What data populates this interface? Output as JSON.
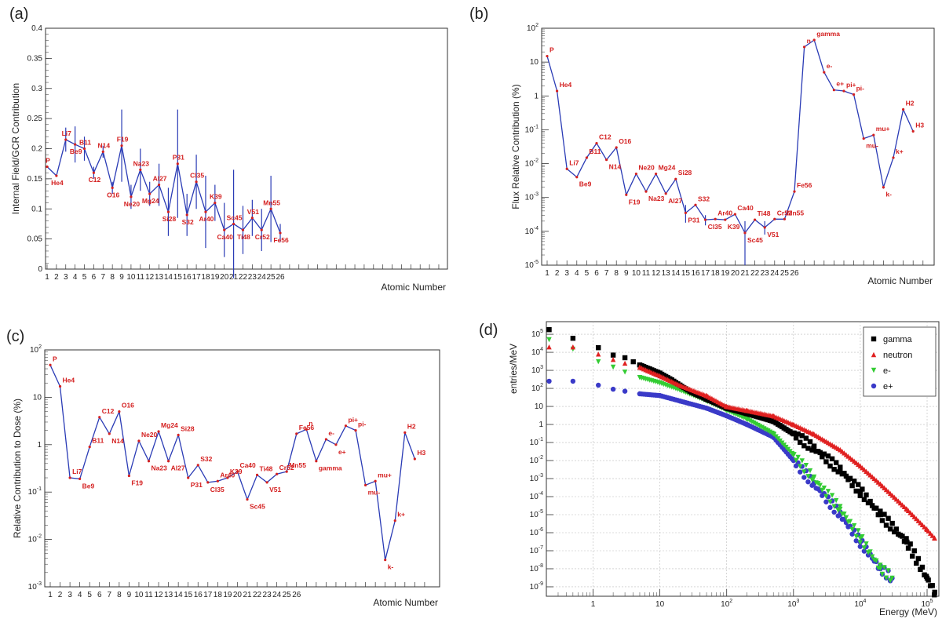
{
  "chart_data": [
    {
      "panel": "(a)",
      "type": "line",
      "ylabel": "Internal Field/GCR Contribution",
      "xlabel": "Atomic Number",
      "ylim": [
        0,
        0.4
      ],
      "yscale": "linear",
      "yticks": [
        0,
        0.05,
        0.1,
        0.15,
        0.2,
        0.25,
        0.3,
        0.35,
        0.4
      ],
      "ytick_labels": [
        "0",
        "0.05",
        "0.1",
        "0.15",
        "0.2",
        "0.25",
        "0.3",
        "0.35",
        "0.4"
      ],
      "x_tick_labels": [
        "1",
        "2",
        "3",
        "4",
        "5",
        "6",
        "7",
        "8",
        "9",
        "10",
        "11",
        "12",
        "13",
        "14",
        "15",
        "16",
        "17",
        "18",
        "19",
        "20",
        "21",
        "22",
        "23",
        "24",
        "25",
        "26"
      ],
      "points": [
        {
          "x": 1,
          "y": 0.17,
          "err": 0,
          "label": "P"
        },
        {
          "x": 2,
          "y": 0.155,
          "err": 0,
          "label": "He4"
        },
        {
          "x": 3,
          "y": 0.215,
          "err": 0.02,
          "label": "Li7"
        },
        {
          "x": 4,
          "y": 0.207,
          "err": 0.03,
          "label": "Be9"
        },
        {
          "x": 5,
          "y": 0.2,
          "err": 0.02,
          "label": "B11"
        },
        {
          "x": 6,
          "y": 0.16,
          "err": 0.01,
          "label": "C12"
        },
        {
          "x": 7,
          "y": 0.195,
          "err": 0.01,
          "label": "N14"
        },
        {
          "x": 8,
          "y": 0.135,
          "err": 0.01,
          "label": "O16"
        },
        {
          "x": 9,
          "y": 0.205,
          "err": 0.06,
          "label": "F19"
        },
        {
          "x": 10,
          "y": 0.12,
          "err": 0.02,
          "label": "Ne20"
        },
        {
          "x": 11,
          "y": 0.165,
          "err": 0.035,
          "label": "Na23"
        },
        {
          "x": 12,
          "y": 0.125,
          "err": 0.02,
          "label": "Mg24"
        },
        {
          "x": 13,
          "y": 0.14,
          "err": 0.035,
          "label": "Al27"
        },
        {
          "x": 14,
          "y": 0.095,
          "err": 0.04,
          "label": "Si28"
        },
        {
          "x": 15,
          "y": 0.175,
          "err": 0.09,
          "label": "P31"
        },
        {
          "x": 16,
          "y": 0.09,
          "err": 0.035,
          "label": "S32"
        },
        {
          "x": 17,
          "y": 0.145,
          "err": 0.045,
          "label": "Cl35"
        },
        {
          "x": 18,
          "y": 0.095,
          "err": 0.06,
          "label": "Ar40"
        },
        {
          "x": 19,
          "y": 0.11,
          "err": 0.03,
          "label": "K39"
        },
        {
          "x": 20,
          "y": 0.065,
          "err": 0.045,
          "label": "Ca40"
        },
        {
          "x": 21,
          "y": 0.075,
          "err": 0.09,
          "label": "Sc45"
        },
        {
          "x": 22,
          "y": 0.065,
          "err": 0.04,
          "label": "Ti48"
        },
        {
          "x": 23,
          "y": 0.085,
          "err": 0.03,
          "label": "V51"
        },
        {
          "x": 24,
          "y": 0.065,
          "err": 0.035,
          "label": "Cr52"
        },
        {
          "x": 25,
          "y": 0.1,
          "err": 0.055,
          "label": "Mn55"
        },
        {
          "x": 26,
          "y": 0.06,
          "err": 0.015,
          "label": "Fe56"
        }
      ]
    },
    {
      "panel": "(b)",
      "type": "line",
      "ylabel": "Flux Relative Contribution (%)",
      "xlabel": "Atomic Number",
      "yscale": "log",
      "ylim": [
        1e-05,
        100
      ],
      "ytick_labels": [
        "10-5",
        "10-4",
        "10-3",
        "10-2",
        "10-1",
        "1",
        "10",
        "102"
      ],
      "x_tick_labels": [
        "1",
        "2",
        "3",
        "4",
        "5",
        "6",
        "7",
        "8",
        "9",
        "10",
        "11",
        "12",
        "13",
        "14",
        "15",
        "16",
        "17",
        "18",
        "19",
        "20",
        "21",
        "22",
        "23",
        "24",
        "25",
        "26"
      ],
      "points": [
        {
          "x": 1,
          "y": 15,
          "label": "P"
        },
        {
          "x": 2,
          "y": 1.4,
          "label": "He4"
        },
        {
          "x": 3,
          "y": 0.007,
          "label": "Li7"
        },
        {
          "x": 4,
          "y": 0.004,
          "label": "Be9"
        },
        {
          "x": 5,
          "y": 0.015,
          "label": "B11"
        },
        {
          "x": 6,
          "y": 0.04,
          "label": "C12"
        },
        {
          "x": 7,
          "y": 0.013,
          "label": "N14"
        },
        {
          "x": 8,
          "y": 0.03,
          "label": "O16"
        },
        {
          "x": 9,
          "y": 0.0012,
          "label": "F19"
        },
        {
          "x": 10,
          "y": 0.005,
          "label": "Ne20"
        },
        {
          "x": 11,
          "y": 0.0015,
          "label": "Na23"
        },
        {
          "x": 12,
          "y": 0.005,
          "label": "Mg24"
        },
        {
          "x": 13,
          "y": 0.0013,
          "label": "Al27"
        },
        {
          "x": 14,
          "y": 0.0035,
          "label": "Si28"
        },
        {
          "x": 15,
          "y": 0.00035,
          "label": "P31"
        },
        {
          "x": 16,
          "y": 0.0006,
          "label": "S32"
        },
        {
          "x": 17,
          "y": 0.00022,
          "label": "Cl35"
        },
        {
          "x": 18,
          "y": 0.00023,
          "label": "Ar40"
        },
        {
          "x": 19,
          "y": 0.00022,
          "label": "K39"
        },
        {
          "x": 20,
          "y": 0.00032,
          "label": "Ca40"
        },
        {
          "x": 21,
          "y": 9e-05,
          "label": "Sc45"
        },
        {
          "x": 22,
          "y": 0.00022,
          "label": "Ti48"
        },
        {
          "x": 23,
          "y": 0.00013,
          "label": "V51"
        },
        {
          "x": 24,
          "y": 0.00023,
          "label": "Cr52"
        },
        {
          "x": 25,
          "y": 0.00023,
          "label": "Mn55"
        },
        {
          "x": 26,
          "y": 0.0015,
          "label": "Fe56"
        },
        {
          "x": 27,
          "y": 28,
          "label": "n"
        },
        {
          "x": 28,
          "y": 45,
          "label": "gamma"
        },
        {
          "x": 29,
          "y": 5,
          "label": "e-"
        },
        {
          "x": 30,
          "y": 1.5,
          "label": "e+"
        },
        {
          "x": 31,
          "y": 1.4,
          "label": "pi+"
        },
        {
          "x": 32,
          "y": 1.1,
          "label": "pi-"
        },
        {
          "x": 33,
          "y": 0.055,
          "label": "mu-"
        },
        {
          "x": 34,
          "y": 0.07,
          "label": "mu+"
        },
        {
          "x": 35,
          "y": 0.002,
          "label": "k-"
        },
        {
          "x": 36,
          "y": 0.015,
          "label": "k+"
        },
        {
          "x": 37,
          "y": 0.4,
          "label": "H2"
        },
        {
          "x": 38,
          "y": 0.09,
          "label": "H3"
        }
      ]
    },
    {
      "panel": "(c)",
      "type": "line",
      "ylabel": "Relative Contribution to Dose (%)",
      "xlabel": "Atomic Number",
      "yscale": "log",
      "ylim": [
        0.001,
        100
      ],
      "ytick_labels": [
        "10-3",
        "10-2",
        "10-1",
        "1",
        "10",
        "102"
      ],
      "x_tick_labels": [
        "1",
        "2",
        "3",
        "4",
        "5",
        "6",
        "7",
        "8",
        "9",
        "10",
        "11",
        "12",
        "13",
        "14",
        "15",
        "16",
        "17",
        "18",
        "19",
        "20",
        "21",
        "22",
        "23",
        "24",
        "25",
        "26"
      ],
      "points": [
        {
          "x": 1,
          "y": 48,
          "label": "P"
        },
        {
          "x": 2,
          "y": 17,
          "label": "He4"
        },
        {
          "x": 3,
          "y": 0.2,
          "label": "Li7"
        },
        {
          "x": 4,
          "y": 0.19,
          "label": "Be9"
        },
        {
          "x": 5,
          "y": 0.9,
          "label": "B11"
        },
        {
          "x": 6,
          "y": 3.8,
          "label": "C12"
        },
        {
          "x": 7,
          "y": 1.7,
          "label": "N14"
        },
        {
          "x": 8,
          "y": 5,
          "label": "O16"
        },
        {
          "x": 9,
          "y": 0.22,
          "label": "F19"
        },
        {
          "x": 10,
          "y": 1.2,
          "label": "Ne20"
        },
        {
          "x": 11,
          "y": 0.45,
          "label": "Na23"
        },
        {
          "x": 12,
          "y": 1.9,
          "label": "Mg24"
        },
        {
          "x": 13,
          "y": 0.45,
          "label": "Al27"
        },
        {
          "x": 14,
          "y": 1.6,
          "label": "Si28"
        },
        {
          "x": 15,
          "y": 0.2,
          "label": "P31"
        },
        {
          "x": 16,
          "y": 0.37,
          "label": "S32"
        },
        {
          "x": 17,
          "y": 0.16,
          "label": "Cl35"
        },
        {
          "x": 18,
          "y": 0.17,
          "label": "Ar40"
        },
        {
          "x": 19,
          "y": 0.2,
          "label": "K39"
        },
        {
          "x": 20,
          "y": 0.27,
          "label": "Ca40"
        },
        {
          "x": 21,
          "y": 0.07,
          "label": "Sc45"
        },
        {
          "x": 22,
          "y": 0.23,
          "label": "Ti48"
        },
        {
          "x": 23,
          "y": 0.16,
          "label": "V51"
        },
        {
          "x": 24,
          "y": 0.24,
          "label": "Cr52"
        },
        {
          "x": 25,
          "y": 0.27,
          "label": "Mn55"
        },
        {
          "x": 26,
          "y": 1.7,
          "label": "Fe56"
        },
        {
          "x": 27,
          "y": 2.1,
          "label": "n"
        },
        {
          "x": 28,
          "y": 0.45,
          "label": "gamma"
        },
        {
          "x": 29,
          "y": 1.3,
          "label": "e-"
        },
        {
          "x": 30,
          "y": 1.0,
          "label": "e+"
        },
        {
          "x": 31,
          "y": 2.5,
          "label": "pi+"
        },
        {
          "x": 32,
          "y": 2.0,
          "label": "pi-"
        },
        {
          "x": 33,
          "y": 0.14,
          "label": "mu-"
        },
        {
          "x": 34,
          "y": 0.17,
          "label": "mu+"
        },
        {
          "x": 35,
          "y": 0.0037,
          "label": "k-"
        },
        {
          "x": 36,
          "y": 0.025,
          "label": "k+"
        },
        {
          "x": 37,
          "y": 1.8,
          "label": "H2"
        },
        {
          "x": 38,
          "y": 0.5,
          "label": "H3"
        }
      ]
    },
    {
      "panel": "(d)",
      "type": "scatter",
      "ylabel": "entries/MeV",
      "xlabel": "Energy (MeV)",
      "xscale": "log",
      "yscale": "log",
      "xlim": [
        0.2,
        150000
      ],
      "ylim": [
        3e-10,
        500000
      ],
      "xtick_labels": [
        "1",
        "10",
        "102",
        "103",
        "104",
        "105"
      ],
      "ytick_labels": [
        "10-9",
        "10-8",
        "10-7",
        "10-6",
        "10-5",
        "10-4",
        "10-3",
        "10-2",
        "10-1",
        "1",
        "10",
        "102",
        "103",
        "104",
        "105"
      ],
      "legend": [
        "gamma",
        "neutron",
        "e-",
        "e+"
      ],
      "series": [
        {
          "name": "gamma",
          "marker": "square",
          "color": "#000000",
          "x": [
            0.22,
            0.5,
            1.2,
            2,
            3,
            4,
            5,
            7,
            10,
            15,
            20,
            30,
            50,
            100,
            200,
            500,
            1000,
            2000,
            5000,
            10000,
            20000,
            50000,
            100000,
            130000
          ],
          "y": [
            180000,
            60000,
            18000,
            7000,
            5000,
            3000,
            2000,
            1200,
            700,
            300,
            150,
            60,
            25,
            8,
            4,
            1.5,
            0.3,
            0.05,
            0.003,
            0.0002,
            1e-05,
            3e-07,
            3e-09,
            5e-10
          ]
        },
        {
          "name": "neutron",
          "marker": "triangle-up",
          "color": "#e02020",
          "x": [
            0.22,
            0.5,
            1.2,
            2,
            3,
            5,
            10,
            20,
            50,
            100,
            200,
            500,
            1000,
            2000,
            5000,
            10000,
            20000,
            50000,
            100000,
            130000
          ],
          "y": [
            20000,
            20000,
            8000,
            4000,
            2500,
            1500,
            500,
            150,
            40,
            10,
            6,
            3,
            1,
            0.3,
            0.04,
            0.005,
            0.0005,
            2e-05,
            1.5e-06,
            5e-07
          ]
        },
        {
          "name": "e-",
          "marker": "triangle-down",
          "color": "#33cc33",
          "x": [
            0.22,
            0.5,
            1.2,
            2,
            3,
            5,
            10,
            20,
            50,
            100,
            200,
            500,
            1000,
            2000,
            5000,
            10000,
            20000,
            30000
          ],
          "y": [
            50000,
            15000,
            3000,
            1500,
            800,
            400,
            200,
            80,
            20,
            6,
            2,
            0.3,
            0.02,
            0.001,
            2e-05,
            5e-07,
            1e-08,
            3e-09
          ]
        },
        {
          "name": "e+",
          "marker": "circle",
          "color": "#3a3ac8",
          "x": [
            0.22,
            0.5,
            1.2,
            2,
            3,
            5,
            10,
            20,
            50,
            100,
            200,
            500,
            1000,
            2000,
            5000,
            10000,
            20000,
            30000
          ],
          "y": [
            250,
            250,
            150,
            90,
            70,
            50,
            40,
            20,
            8,
            3,
            1,
            0.2,
            0.01,
            0.0005,
            1e-05,
            3e-07,
            1e-08,
            3e-09
          ]
        }
      ]
    }
  ]
}
